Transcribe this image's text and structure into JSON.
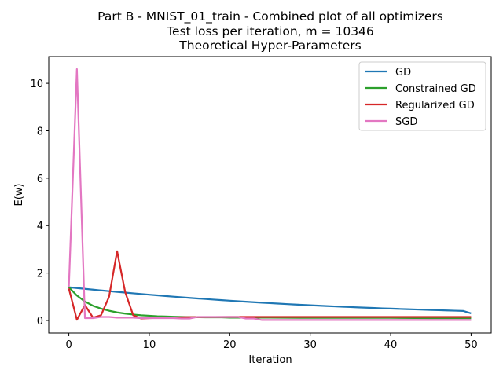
{
  "chart_data": {
    "type": "line",
    "title_lines": [
      "Part B - MNIST_01_train - Combined plot of all optimizers",
      "Test loss per iteration, m =  10346",
      "Theoretical Hyper-Parameters"
    ],
    "xlabel": "Iteration",
    "ylabel": "E(w)",
    "xlim": [
      -2.5,
      52.5
    ],
    "ylim": [
      -0.53,
      11.13
    ],
    "xticks": [
      0,
      10,
      20,
      30,
      40,
      50
    ],
    "yticks": [
      0,
      2,
      4,
      6,
      8,
      10
    ],
    "grid": false,
    "legend_position": "top-right",
    "series": [
      {
        "name": "GD",
        "color": "#1f77b4",
        "x": [
          0,
          1,
          2,
          3,
          4,
          5,
          6,
          7,
          8,
          9,
          10,
          11,
          12,
          13,
          14,
          15,
          16,
          17,
          18,
          19,
          20,
          21,
          22,
          23,
          24,
          25,
          26,
          27,
          28,
          29,
          30,
          31,
          32,
          33,
          34,
          35,
          36,
          37,
          38,
          39,
          40,
          41,
          42,
          43,
          44,
          45,
          46,
          47,
          48,
          49,
          50
        ],
        "y": [
          1.4,
          1.366,
          1.333,
          1.3,
          1.268,
          1.236,
          1.205,
          1.175,
          1.145,
          1.116,
          1.087,
          1.059,
          1.032,
          1.005,
          0.979,
          0.953,
          0.928,
          0.904,
          0.88,
          0.857,
          0.834,
          0.812,
          0.791,
          0.77,
          0.75,
          0.731,
          0.712,
          0.693,
          0.675,
          0.658,
          0.641,
          0.625,
          0.609,
          0.594,
          0.579,
          0.565,
          0.551,
          0.538,
          0.525,
          0.512,
          0.5,
          0.488,
          0.476,
          0.465,
          0.454,
          0.443,
          0.432,
          0.422,
          0.412,
          0.402,
          0.3
        ]
      },
      {
        "name": "Constrained GD",
        "color": "#2ca02c",
        "x": [
          0,
          1,
          2,
          3,
          4,
          5,
          6,
          7,
          8,
          9,
          10,
          11,
          12,
          13,
          14,
          15,
          16,
          17,
          18,
          19,
          20,
          25,
          30,
          35,
          40,
          45,
          50
        ],
        "y": [
          1.4,
          1.05,
          0.8,
          0.62,
          0.5,
          0.41,
          0.34,
          0.29,
          0.25,
          0.22,
          0.2,
          0.18,
          0.17,
          0.16,
          0.15,
          0.14,
          0.14,
          0.13,
          0.13,
          0.13,
          0.12,
          0.12,
          0.11,
          0.11,
          0.11,
          0.1,
          0.1
        ]
      },
      {
        "name": "Regularized GD",
        "color": "#d62728",
        "x": [
          0,
          1,
          2,
          3,
          4,
          5,
          6,
          7,
          8,
          9,
          10,
          12,
          15,
          20,
          25,
          30,
          35,
          40,
          45,
          50
        ],
        "y": [
          1.35,
          0.03,
          0.65,
          0.12,
          0.22,
          1.0,
          2.92,
          1.2,
          0.22,
          0.08,
          0.1,
          0.12,
          0.14,
          0.15,
          0.15,
          0.15,
          0.15,
          0.15,
          0.15,
          0.15
        ]
      },
      {
        "name": "SGD",
        "color": "#e377c2",
        "x": [
          0,
          1,
          2,
          3,
          4,
          5,
          6,
          7,
          8,
          9,
          10,
          11,
          12,
          13,
          14,
          15,
          16,
          17,
          18,
          19,
          20,
          21,
          22,
          23,
          24,
          25,
          30,
          35,
          40,
          45,
          50
        ],
        "y": [
          1.4,
          10.6,
          0.1,
          0.1,
          0.15,
          0.15,
          0.12,
          0.12,
          0.12,
          0.1,
          0.1,
          0.1,
          0.1,
          0.1,
          0.08,
          0.08,
          0.15,
          0.15,
          0.15,
          0.15,
          0.15,
          0.15,
          0.08,
          0.08,
          0.02,
          0.02,
          0.02,
          0.02,
          0.02,
          0.02,
          0.02
        ]
      }
    ]
  }
}
